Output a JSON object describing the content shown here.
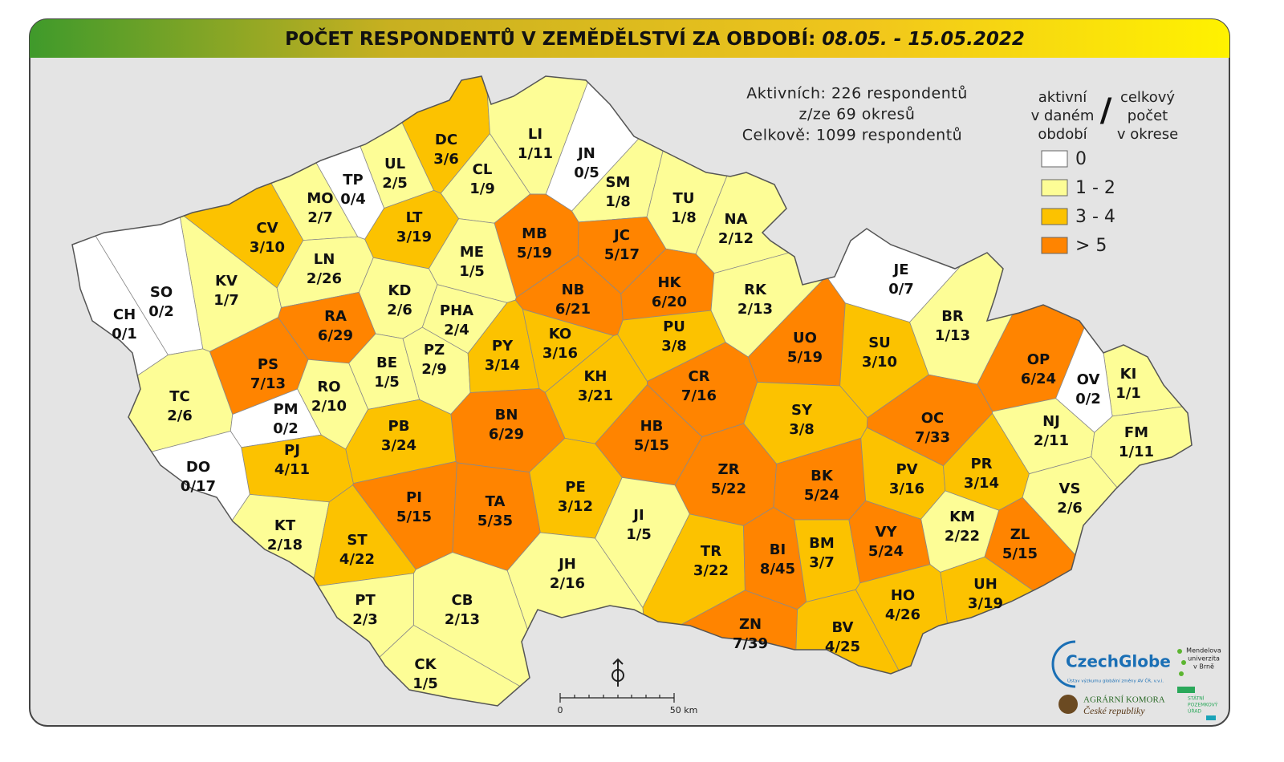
{
  "header": {
    "title": "POČET RESPONDENTŮ V ZEMĚDĚLSTVÍ ZA OBDOBÍ:",
    "period": "08.05. - 15.05.2022"
  },
  "summary": [
    "Aktivních: 226 respondentů",
    "z/ze 69 okresů",
    "Celkově: 1099 respondentů"
  ],
  "legend": {
    "left": [
      "aktivní",
      "v daném",
      "období"
    ],
    "separator": "/",
    "right": [
      "celkový",
      "počet",
      "v okrese"
    ],
    "items": [
      {
        "label": "0",
        "color": "#ffffff"
      },
      {
        "label": "1 - 2",
        "color": "#fdfd96"
      },
      {
        "label": "3 - 4",
        "color": "#fcc200"
      },
      {
        "label": "> 5",
        "color": "#ff8400"
      }
    ]
  },
  "districts": [
    {
      "code": "DC",
      "label": "3/6",
      "color": "#fcc200"
    },
    {
      "code": "LI",
      "label": "1/11",
      "color": "#fdfd96"
    },
    {
      "code": "JN",
      "label": "0/5",
      "color": "#ffffff"
    },
    {
      "code": "UL",
      "label": "2/5",
      "color": "#fdfd96"
    },
    {
      "code": "CL",
      "label": "1/9",
      "color": "#fdfd96"
    },
    {
      "code": "TP",
      "label": "0/4",
      "color": "#ffffff"
    },
    {
      "code": "MO",
      "label": "2/7",
      "color": "#fdfd96"
    },
    {
      "code": "SM",
      "label": "1/8",
      "color": "#fdfd96"
    },
    {
      "code": "TU",
      "label": "1/8",
      "color": "#fdfd96"
    },
    {
      "code": "NA",
      "label": "2/12",
      "color": "#fdfd96"
    },
    {
      "code": "CV",
      "label": "3/10",
      "color": "#fcc200"
    },
    {
      "code": "LT",
      "label": "3/19",
      "color": "#fcc200"
    },
    {
      "code": "MB",
      "label": "5/19",
      "color": "#ff8400"
    },
    {
      "code": "JC",
      "label": "5/17",
      "color": "#ff8400"
    },
    {
      "code": "KV",
      "label": "1/7",
      "color": "#fdfd96"
    },
    {
      "code": "LN",
      "label": "2/26",
      "color": "#fdfd96"
    },
    {
      "code": "ME",
      "label": "1/5",
      "color": "#fdfd96"
    },
    {
      "code": "SO",
      "label": "0/2",
      "color": "#ffffff"
    },
    {
      "code": "CH",
      "label": "0/1",
      "color": "#ffffff"
    },
    {
      "code": "KD",
      "label": "2/6",
      "color": "#fdfd96"
    },
    {
      "code": "NB",
      "label": "6/21",
      "color": "#ff8400"
    },
    {
      "code": "HK",
      "label": "6/20",
      "color": "#ff8400"
    },
    {
      "code": "RK",
      "label": "2/13",
      "color": "#fdfd96"
    },
    {
      "code": "JE",
      "label": "0/7",
      "color": "#ffffff"
    },
    {
      "code": "RA",
      "label": "6/29",
      "color": "#ff8400"
    },
    {
      "code": "PHA",
      "label": "2/4",
      "color": "#fdfd96"
    },
    {
      "code": "PU",
      "label": "3/8",
      "color": "#fcc200"
    },
    {
      "code": "UO",
      "label": "5/19",
      "color": "#ff8400"
    },
    {
      "code": "SU",
      "label": "3/10",
      "color": "#fcc200"
    },
    {
      "code": "BR",
      "label": "1/13",
      "color": "#fdfd96"
    },
    {
      "code": "OP",
      "label": "6/24",
      "color": "#ff8400"
    },
    {
      "code": "PS",
      "label": "7/13",
      "color": "#ff8400"
    },
    {
      "code": "BE",
      "label": "1/5",
      "color": "#fdfd96"
    },
    {
      "code": "PZ",
      "label": "2/9",
      "color": "#fdfd96"
    },
    {
      "code": "PY",
      "label": "3/14",
      "color": "#fcc200"
    },
    {
      "code": "KO",
      "label": "3/16",
      "color": "#fcc200"
    },
    {
      "code": "KH",
      "label": "3/21",
      "color": "#fcc200"
    },
    {
      "code": "CR",
      "label": "7/16",
      "color": "#ff8400"
    },
    {
      "code": "KI",
      "label": "1/1",
      "color": "#fdfd96"
    },
    {
      "code": "OV",
      "label": "0/2",
      "color": "#ffffff"
    },
    {
      "code": "TC",
      "label": "2/6",
      "color": "#fdfd96"
    },
    {
      "code": "RO",
      "label": "2/10",
      "color": "#fdfd96"
    },
    {
      "code": "PM",
      "label": "0/2",
      "color": "#ffffff"
    },
    {
      "code": "BN",
      "label": "6/29",
      "color": "#ff8400"
    },
    {
      "code": "HB",
      "label": "5/15",
      "color": "#ff8400"
    },
    {
      "code": "SY",
      "label": "3/8",
      "color": "#fcc200"
    },
    {
      "code": "OC",
      "label": "7/33",
      "color": "#ff8400"
    },
    {
      "code": "NJ",
      "label": "2/11",
      "color": "#fdfd96"
    },
    {
      "code": "FM",
      "label": "1/11",
      "color": "#fdfd96"
    },
    {
      "code": "PB",
      "label": "3/24",
      "color": "#fcc200"
    },
    {
      "code": "PJ",
      "label": "4/11",
      "color": "#fcc200"
    },
    {
      "code": "DO",
      "label": "0/17",
      "color": "#ffffff"
    },
    {
      "code": "ZR",
      "label": "5/22",
      "color": "#ff8400"
    },
    {
      "code": "BK",
      "label": "5/24",
      "color": "#ff8400"
    },
    {
      "code": "PV",
      "label": "3/16",
      "color": "#fcc200"
    },
    {
      "code": "PR",
      "label": "3/14",
      "color": "#fcc200"
    },
    {
      "code": "VS",
      "label": "2/6",
      "color": "#fdfd96"
    },
    {
      "code": "PE",
      "label": "3/12",
      "color": "#fcc200"
    },
    {
      "code": "PI",
      "label": "5/15",
      "color": "#ff8400"
    },
    {
      "code": "TA",
      "label": "5/35",
      "color": "#ff8400"
    },
    {
      "code": "JI",
      "label": "1/5",
      "color": "#fdfd96"
    },
    {
      "code": "KM",
      "label": "2/22",
      "color": "#fdfd96"
    },
    {
      "code": "ZL",
      "label": "5/15",
      "color": "#ff8400"
    },
    {
      "code": "KT",
      "label": "2/18",
      "color": "#fdfd96"
    },
    {
      "code": "ST",
      "label": "4/22",
      "color": "#fcc200"
    },
    {
      "code": "TR",
      "label": "3/22",
      "color": "#fcc200"
    },
    {
      "code": "BI",
      "label": "8/45",
      "color": "#ff8400"
    },
    {
      "code": "BM",
      "label": "3/7",
      "color": "#fcc200"
    },
    {
      "code": "VY",
      "label": "5/24",
      "color": "#ff8400"
    },
    {
      "code": "JH",
      "label": "2/16",
      "color": "#fdfd96"
    },
    {
      "code": "UH",
      "label": "3/19",
      "color": "#fcc200"
    },
    {
      "code": "PT",
      "label": "2/3",
      "color": "#fdfd96"
    },
    {
      "code": "CB",
      "label": "2/13",
      "color": "#fdfd96"
    },
    {
      "code": "HO",
      "label": "4/26",
      "color": "#fcc200"
    },
    {
      "code": "ZN",
      "label": "7/39",
      "color": "#ff8400"
    },
    {
      "code": "BV",
      "label": "4/25",
      "color": "#fcc200"
    },
    {
      "code": "CK",
      "label": "1/5",
      "color": "#fdfd96"
    }
  ],
  "scale": {
    "start": "0",
    "end": "50 km"
  },
  "logos": {
    "czechglobe": "CzechGlobe",
    "czechglobe_sub": "Ústav výzkumu globální změny AV ČR, v.v.i.",
    "mendel": [
      "Mendelova",
      "univerzita",
      "v Brně"
    ],
    "akcr": [
      "AGRÁRNÍ KOMORA",
      "České republiky"
    ],
    "spu": [
      "STÁTNÍ",
      "POZEMKOVÝ",
      "ÚŘAD"
    ]
  }
}
